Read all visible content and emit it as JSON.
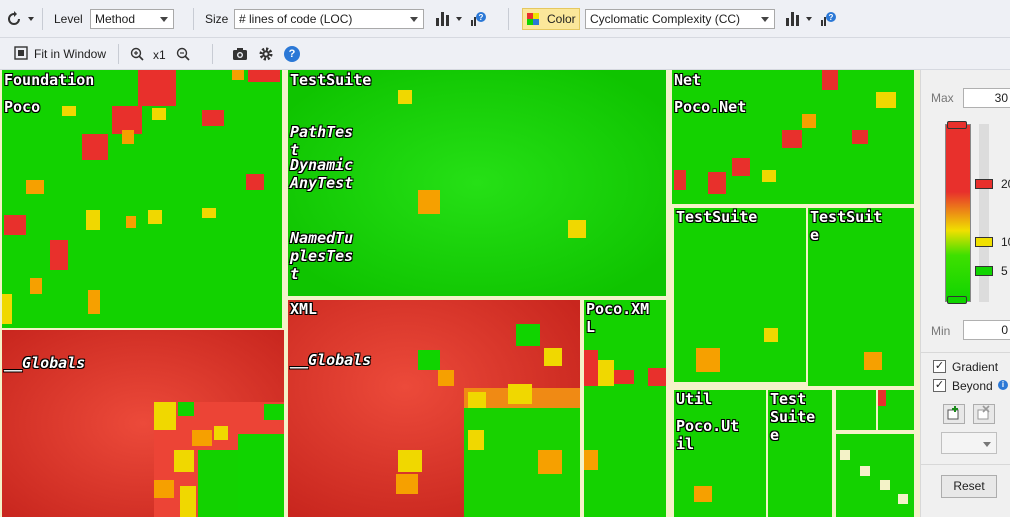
{
  "toolbar1": {
    "level_label": "Level",
    "level_value": "Method",
    "size_label": "Size",
    "size_value": "# lines of code (LOC)",
    "color_label": "Color",
    "color_value": "Cyclomatic Complexity (CC)"
  },
  "toolbar2": {
    "fit_label": "Fit in Window",
    "zoom_label": "x1",
    "help_glyph": "?"
  },
  "treemap": {
    "labels": {
      "foundation": "Foundation",
      "foundation_poco": "Poco",
      "foundation_globals": "__Globals",
      "testsuite": "TestSuite",
      "pathtest": "PathTes\nt",
      "dynamicanytest": "Dynamic\nAnyTest",
      "namedtuplestest": "NamedTu\nplesTes\nt",
      "net": "Net",
      "poco_net": "Poco.Net",
      "net_testsuite_a": "TestSuite",
      "net_testsuite_b": "TestSuit\ne",
      "xml": "XML",
      "xml_globals": "__Globals",
      "poco_xml": "Poco.XM\nL",
      "util": "Util",
      "poco_util": "Poco.Ut\nil",
      "util_testsuite": "Test\nSuite\ne"
    }
  },
  "panel": {
    "max_label": "Max",
    "max_value": "30",
    "min_label": "Min",
    "min_value": "0",
    "tick_20": "20",
    "tick_10": "10",
    "tick_5": "5",
    "gradient_label": "Gradient",
    "beyond_label": "Beyond",
    "reset_label": "Reset"
  },
  "colors": {
    "low": "#10d400",
    "mid": "#f0e000",
    "high": "#e8302c",
    "label_bar": "#f4f2c8",
    "accent": "#2b78d6"
  },
  "icons": [
    "refresh-icon",
    "bar-chart-icon",
    "help-icon",
    "fit-window-icon",
    "zoom-in-icon",
    "zoom-out-icon",
    "camera-icon",
    "gear-icon",
    "add-icon",
    "remove-icon"
  ]
}
